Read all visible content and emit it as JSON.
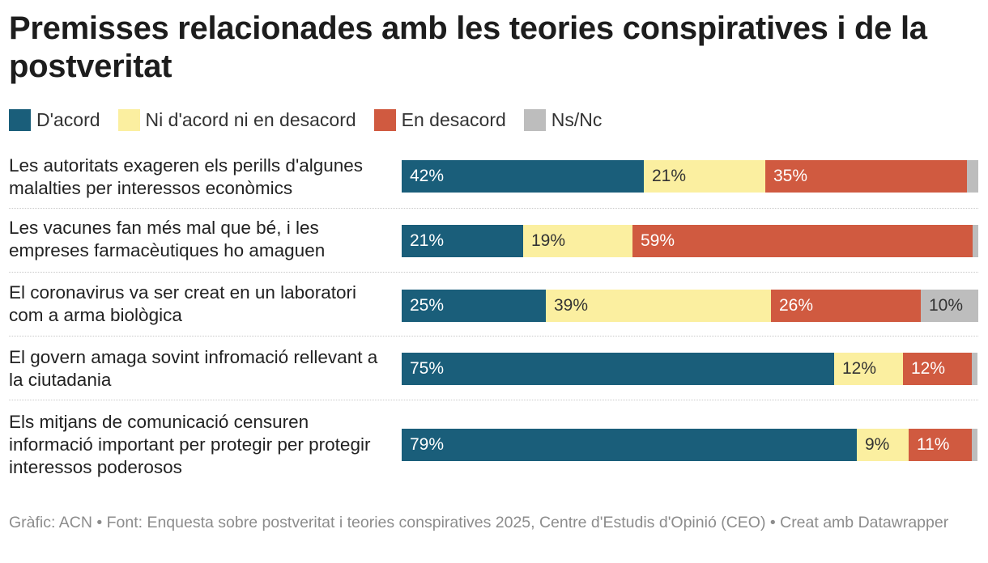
{
  "chart_data": {
    "type": "bar",
    "orientation": "horizontal",
    "stacked": true,
    "title": "Premisses relacionades amb les teories conspiratives i de la postveritat",
    "legend_position": "top-left",
    "categories": [
      "Les autoritats exageren els perills d'algunes malalties per interessos econòmics",
      "Les vacunes fan més mal que bé, i les empreses farmacèutiques ho amaguen",
      "El coronavirus va ser creat en un laboratori com a arma biològica",
      "El govern amaga sovint infromació rellevant a la ciutadania",
      "Els mitjans de comunicació censuren informació important per protegir per protegir interessos poderosos"
    ],
    "series": [
      {
        "name": "D'acord",
        "color": "#1a5e7a",
        "text_color": "#ffffff",
        "values": [
          42,
          21,
          25,
          75,
          79
        ],
        "labels": [
          "42%",
          "21%",
          "25%",
          "75%",
          "79%"
        ]
      },
      {
        "name": "Ni d'acord ni en desacord",
        "color": "#fbefa0",
        "text_color": "#333333",
        "values": [
          21,
          19,
          39,
          12,
          9
        ],
        "labels": [
          "21%",
          "19%",
          "39%",
          "12%",
          "9%"
        ]
      },
      {
        "name": "En desacord",
        "color": "#d05a40",
        "text_color": "#ffffff",
        "values": [
          35,
          59,
          26,
          12,
          11
        ],
        "labels": [
          "35%",
          "59%",
          "26%",
          "12%",
          "11%"
        ]
      },
      {
        "name": "Ns/Nc",
        "color": "#bdbdbd",
        "text_color": "#333333",
        "values": [
          2,
          1,
          10,
          1,
          1
        ],
        "labels": [
          "",
          "",
          "10%",
          "",
          ""
        ]
      }
    ],
    "xlim": [
      0,
      100
    ]
  },
  "footer": "Gràfic: ACN • Font: Enquesta sobre postveritat i teories conspiratives 2025, Centre d'Estudis d'Opinió (CEO) • Creat amb Datawrapper"
}
